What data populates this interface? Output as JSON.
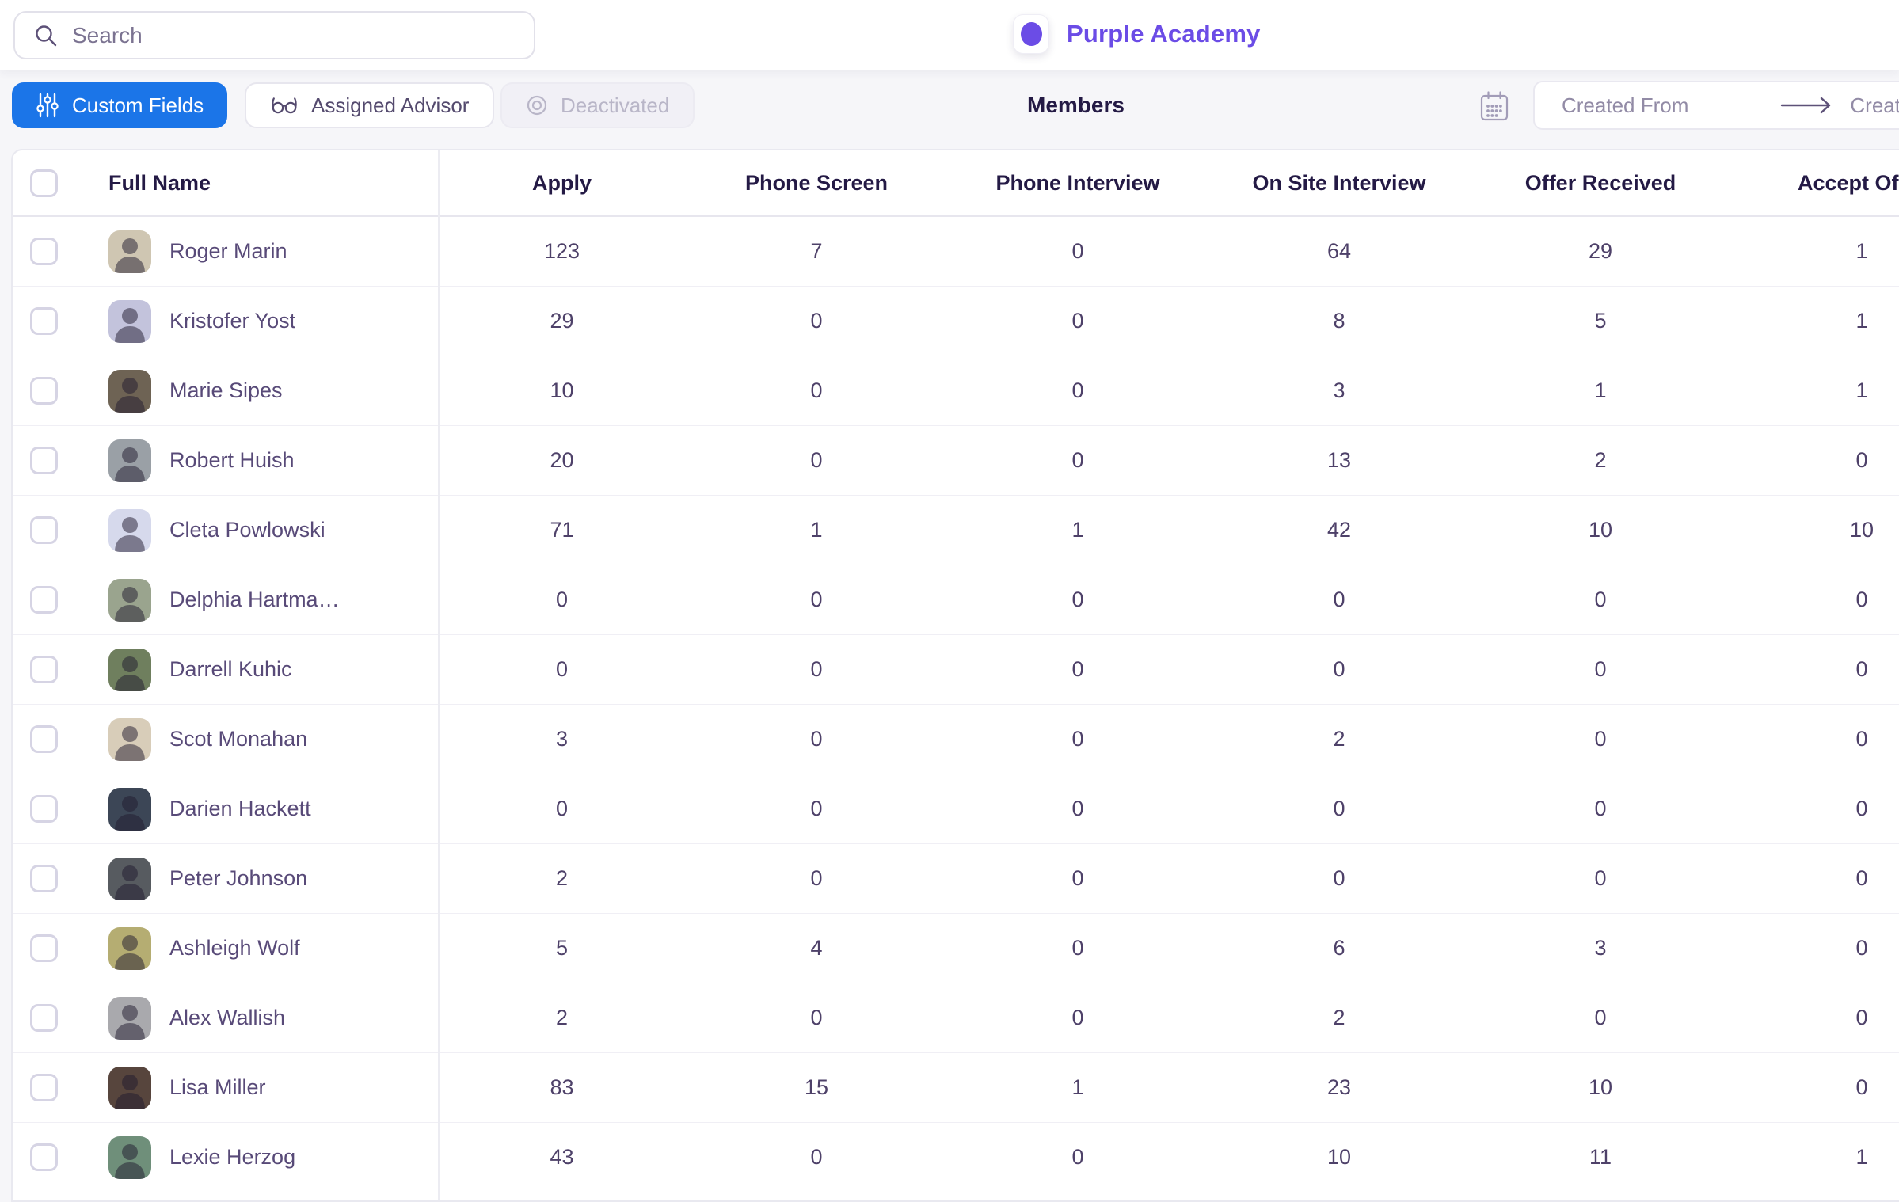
{
  "topbar": {
    "search_placeholder": "Search",
    "brand_name": "Purple Academy"
  },
  "filterbar": {
    "title": "Members",
    "filters": [
      {
        "label": "Custom Fields",
        "icon": "sliders-icon",
        "state": "active"
      },
      {
        "label": "Assigned Advisor",
        "icon": "glasses-icon",
        "state": "normal"
      },
      {
        "label": "Deactivated",
        "icon": "circle-icon",
        "state": "disabled"
      }
    ],
    "date_range": {
      "from_placeholder": "Created From",
      "to_placeholder": "Created To"
    }
  },
  "table": {
    "columns": [
      "Full Name",
      "Apply",
      "Phone Screen",
      "Phone Interview",
      "On Site Interview",
      "Offer Received",
      "Accept Offer"
    ],
    "rows": [
      {
        "name": "Roger Marin",
        "values": [
          "123",
          "7",
          "0",
          "64",
          "29",
          "1"
        ],
        "avatar_bg": "#cfc6b2"
      },
      {
        "name": "Kristofer Yost",
        "values": [
          "29",
          "0",
          "0",
          "8",
          "5",
          "1"
        ],
        "avatar_bg": "#c3c3dc"
      },
      {
        "name": "Marie Sipes",
        "values": [
          "10",
          "0",
          "0",
          "3",
          "1",
          "1"
        ],
        "avatar_bg": "#6e6354"
      },
      {
        "name": "Robert Huish",
        "values": [
          "20",
          "0",
          "0",
          "13",
          "2",
          "0"
        ],
        "avatar_bg": "#9aa0a6"
      },
      {
        "name": "Cleta Powlowski",
        "values": [
          "71",
          "1",
          "1",
          "42",
          "10",
          "10"
        ],
        "avatar_bg": "#d6d9ec"
      },
      {
        "name": "Delphia Hartma…",
        "values": [
          "0",
          "0",
          "0",
          "0",
          "0",
          "0"
        ],
        "avatar_bg": "#9aa48e"
      },
      {
        "name": "Darrell Kuhic",
        "values": [
          "0",
          "0",
          "0",
          "0",
          "0",
          "0"
        ],
        "avatar_bg": "#6f7f5e"
      },
      {
        "name": "Scot Monahan",
        "values": [
          "3",
          "0",
          "0",
          "2",
          "0",
          "0"
        ],
        "avatar_bg": "#d8cdb9"
      },
      {
        "name": "Darien Hackett",
        "values": [
          "0",
          "0",
          "0",
          "0",
          "0",
          "0"
        ],
        "avatar_bg": "#3c4656"
      },
      {
        "name": "Peter Johnson",
        "values": [
          "2",
          "0",
          "0",
          "0",
          "0",
          "0"
        ],
        "avatar_bg": "#575b60"
      },
      {
        "name": "Ashleigh Wolf",
        "values": [
          "5",
          "4",
          "0",
          "6",
          "3",
          "0"
        ],
        "avatar_bg": "#b5ad72"
      },
      {
        "name": "Alex Wallish",
        "values": [
          "2",
          "0",
          "0",
          "2",
          "0",
          "0"
        ],
        "avatar_bg": "#a9a9ad"
      },
      {
        "name": "Lisa Miller",
        "values": [
          "83",
          "15",
          "1",
          "23",
          "10",
          "0"
        ],
        "avatar_bg": "#57453d"
      },
      {
        "name": "Lexie Herzog",
        "values": [
          "43",
          "0",
          "0",
          "10",
          "11",
          "1"
        ],
        "avatar_bg": "#6f8f7a"
      }
    ]
  },
  "colors": {
    "accent_blue": "#1b75e8",
    "brand_purple": "#6b4ce6",
    "heading_text": "#241a45",
    "name_text": "#584a78",
    "value_text": "#4e4169",
    "placeholder_text": "#7b7391",
    "muted_text": "#928ba6",
    "disabled_text": "#b9b6c8",
    "page_bg": "#f6f6f9"
  }
}
